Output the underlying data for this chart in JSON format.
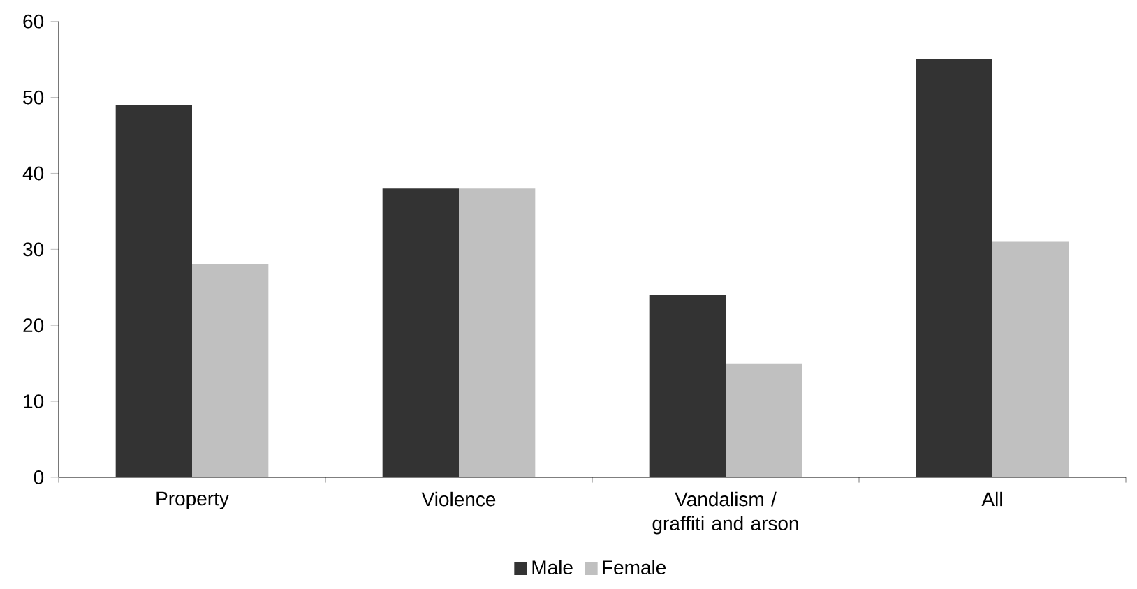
{
  "chart_data": {
    "type": "bar",
    "categories": [
      "Property",
      "Violence",
      "Vandalism / graffiti and arson",
      "All"
    ],
    "series": [
      {
        "name": "Male",
        "color": "#333333",
        "values": [
          49,
          38,
          24,
          55
        ]
      },
      {
        "name": "Female",
        "color": "#c0c0c0",
        "values": [
          28,
          38,
          15,
          31
        ]
      }
    ],
    "ylim": [
      0,
      60
    ],
    "yticks": [
      0,
      10,
      20,
      30,
      40,
      50,
      60
    ],
    "legend": "bottom"
  }
}
